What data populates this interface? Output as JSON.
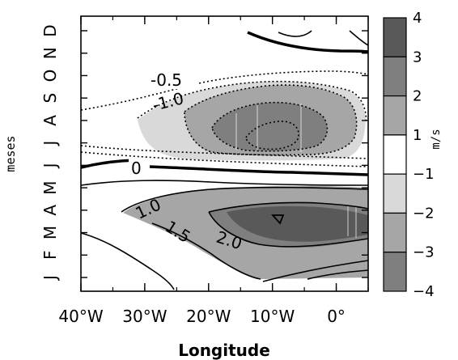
{
  "chart_data": {
    "type": "contour",
    "xlabel": "Longitude",
    "ylabel": "meses",
    "x_ticks": [
      "40°W",
      "30°W",
      "20°W",
      "10°W",
      "0°"
    ],
    "x_tick_values": [
      -40,
      -30,
      -20,
      -10,
      0
    ],
    "xlim": [
      -40,
      5
    ],
    "y_ticks": [
      "J",
      "F",
      "M",
      "A",
      "M",
      "J",
      "J",
      "A",
      "S",
      "O",
      "N",
      "D"
    ],
    "ylim": [
      1,
      12
    ],
    "units": "m/s",
    "colorbar": {
      "labels": [
        "4",
        "3",
        "2",
        "1",
        "−1",
        "−2",
        "−3",
        "−4"
      ],
      "bins": [
        {
          "range": [
            3,
            4
          ],
          "color": "#595959"
        },
        {
          "range": [
            2,
            3
          ],
          "color": "#7f7f7f"
        },
        {
          "range": [
            1,
            2
          ],
          "color": "#a6a6a6"
        },
        {
          "range": [
            -1,
            1
          ],
          "color": "#ffffff"
        },
        {
          "range": [
            -2,
            -1
          ],
          "color": "#d9d9d9"
        },
        {
          "range": [
            -3,
            -2
          ],
          "color": "#a6a6a6"
        },
        {
          "range": [
            -4,
            -3
          ],
          "color": "#7f7f7f"
        }
      ]
    },
    "contour_labels": [
      {
        "text": "-0.5",
        "level": -0.5
      },
      {
        "text": "-1.0",
        "level": -1.0
      },
      {
        "text": "0",
        "level": 0
      },
      {
        "text": "1.0",
        "level": 1.0
      },
      {
        "text": "1.5",
        "level": 1.5
      },
      {
        "text": "2.0",
        "level": 2.0
      }
    ],
    "regions": {
      "upper_negative": {
        "peak_month": "J-A",
        "peak_lon": -10,
        "levels": [
          -0.5,
          -1.0,
          -1.5,
          -2.0
        ]
      },
      "lower_positive": {
        "peak_month": "A",
        "peak_lon": -8,
        "levels": [
          0.5,
          1.0,
          1.5,
          2.0
        ]
      }
    }
  }
}
